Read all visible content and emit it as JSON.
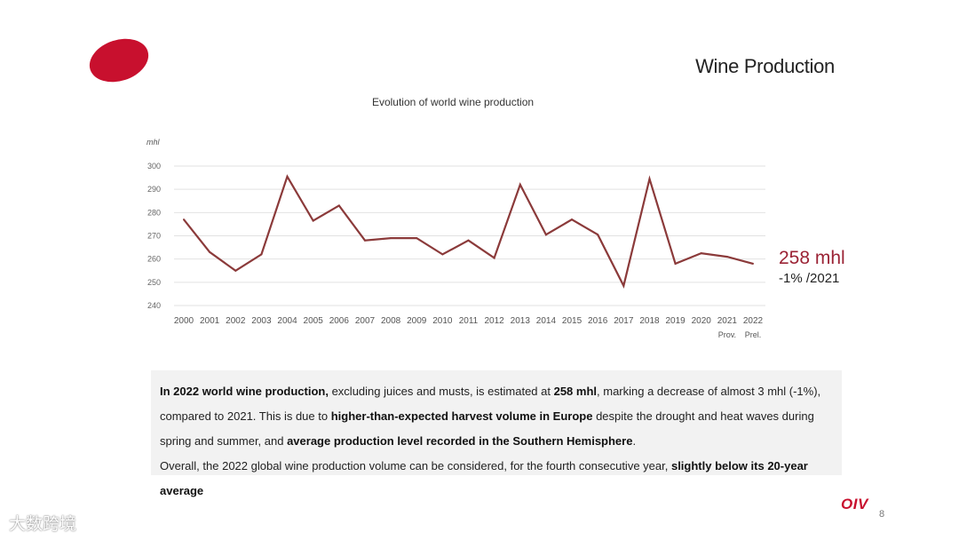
{
  "slide": {
    "title": "Wine Production",
    "page_number": "8",
    "logo_text": "OIV",
    "watermark_text": "大数跨境"
  },
  "chart_data": {
    "type": "line",
    "title": "Evolution of world wine production",
    "ylabel": "mhl",
    "xlabel": "",
    "ylim": [
      240,
      300
    ],
    "yticks": [
      240,
      250,
      260,
      270,
      280,
      290,
      300
    ],
    "grid": true,
    "categories": [
      "2000",
      "2001",
      "2002",
      "2003",
      "2004",
      "2005",
      "2006",
      "2007",
      "2008",
      "2009",
      "2010",
      "2011",
      "2012",
      "2013",
      "2014",
      "2015",
      "2016",
      "2017",
      "2018",
      "2019",
      "2020",
      "2021",
      "2022"
    ],
    "category_sublabels": [
      "",
      "",
      "",
      "",
      "",
      "",
      "",
      "",
      "",
      "",
      "",
      "",
      "",
      "",
      "",
      "",
      "",
      "",
      "",
      "",
      "",
      "Prov.",
      "Prel."
    ],
    "series": [
      {
        "name": "World wine production",
        "color": "#8b3a3a",
        "values": [
          277,
          263,
          255,
          262,
          295.5,
          276.5,
          283,
          268,
          269,
          269,
          262,
          268,
          260.5,
          292,
          270.5,
          277,
          270.5,
          248.5,
          294.5,
          258,
          262.5,
          261,
          258
        ]
      }
    ],
    "annotation": {
      "value": "258 mhl",
      "change": "-1% /2021",
      "value_color": "#9b2335"
    }
  },
  "summary": {
    "line1": [
      {
        "text": "In 2022 world wine production,",
        "hl": true
      },
      {
        "text": " excluding juices and musts, is estimated at ",
        "hl": false
      },
      {
        "text": "258 mhl",
        "hl": true
      },
      {
        "text": ", marking a decrease of almost 3 mhl (-1%), compared to 2021. This is due to ",
        "hl": false
      },
      {
        "text": "higher-than-expected harvest volume in Europe",
        "hl": true
      },
      {
        "text": " despite the drought and heat waves during spring and summer, and ",
        "hl": false
      },
      {
        "text": "average production level recorded in the Southern Hemisphere",
        "hl": true
      },
      {
        "text": ".",
        "hl": false
      }
    ],
    "line2": [
      {
        "text": "Overall, the 2022 global wine production volume can be considered, for the fourth consecutive year, ",
        "hl": false
      },
      {
        "text": "slightly below its 20-year average",
        "hl": true
      }
    ]
  }
}
